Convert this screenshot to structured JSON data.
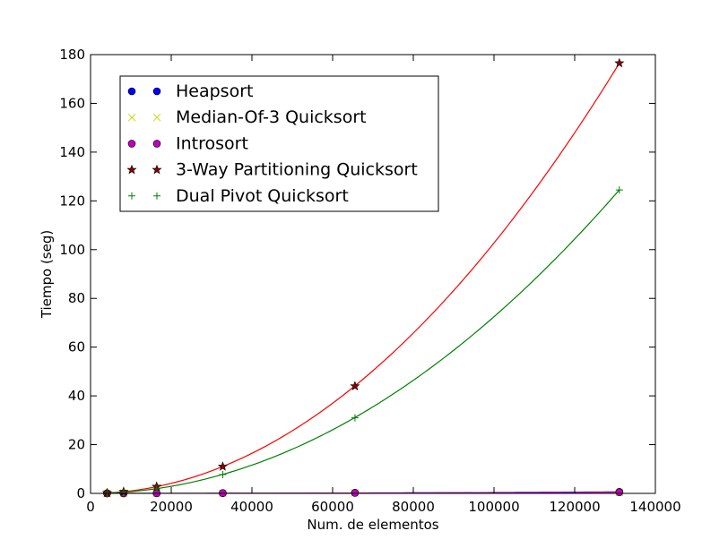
{
  "chart_data": {
    "type": "scatter",
    "title": "",
    "xlabel": "Num. de elementos",
    "ylabel": "Tiempo (seg)",
    "xlim": [
      0,
      140000
    ],
    "ylim": [
      0,
      180
    ],
    "xticks": [
      0,
      20000,
      40000,
      60000,
      80000,
      100000,
      120000,
      140000
    ],
    "yticks": [
      0,
      20,
      40,
      60,
      80,
      100,
      120,
      140,
      160,
      180
    ],
    "grid": false,
    "legend_placement": "top-left",
    "series": [
      {
        "name": "Heapsort",
        "marker": "circle",
        "color": "#0000ff",
        "curve_color": "#0000ff",
        "x": [
          4096,
          8192,
          16384,
          32768,
          65536,
          131072
        ],
        "y": [
          0.01,
          0.03,
          0.06,
          0.13,
          0.28,
          0.62
        ]
      },
      {
        "name": "Median-Of-3 Quicksort",
        "marker": "x",
        "color": "#d4d400",
        "curve_color": "#d4d400",
        "x": [
          4096,
          8192,
          16384,
          32768,
          65536,
          131072
        ],
        "y": [
          0.01,
          0.02,
          0.04,
          0.09,
          0.19,
          0.41
        ]
      },
      {
        "name": "Introsort",
        "marker": "circle",
        "color": "#bf00bf",
        "curve_color": "#bf00bf",
        "x": [
          4096,
          8192,
          16384,
          32768,
          65536,
          131072
        ],
        "y": [
          0.01,
          0.02,
          0.05,
          0.1,
          0.22,
          0.48
        ]
      },
      {
        "name": "3-Way Partitioning Quicksort",
        "marker": "star",
        "color": "#8b0000",
        "curve_color": "#ff0000",
        "x": [
          4096,
          8192,
          16384,
          32768,
          65536,
          131072
        ],
        "y": [
          0.2,
          0.7,
          2.8,
          11,
          44,
          176.5
        ]
      },
      {
        "name": "Dual Pivot Quicksort",
        "marker": "plus",
        "color": "#008000",
        "curve_color": "#008000",
        "x": [
          4096,
          8192,
          16384,
          32768,
          65536,
          131072
        ],
        "y": [
          0.12,
          0.5,
          1.9,
          7.7,
          31,
          124.5
        ]
      }
    ]
  }
}
